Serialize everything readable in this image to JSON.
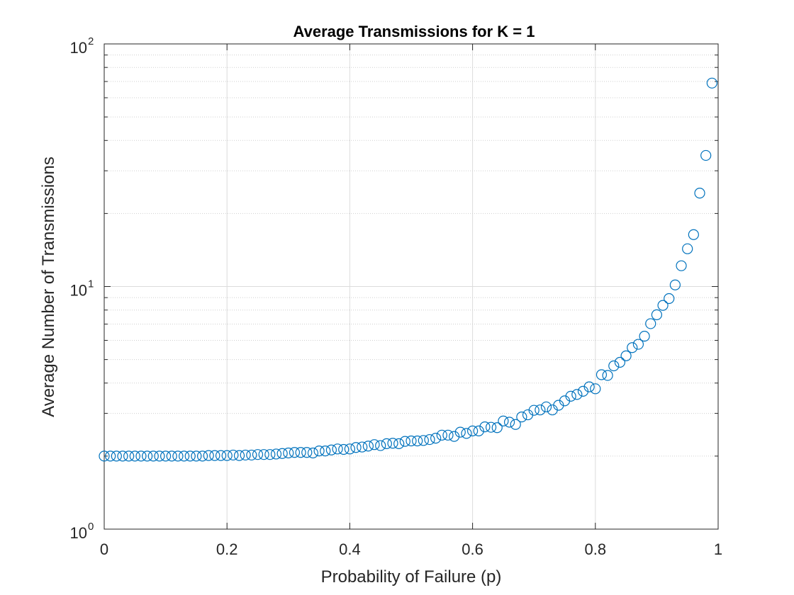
{
  "chart_data": {
    "type": "scatter",
    "title": "Average Transmissions for K = 1",
    "xlabel": "Probability of Failure (p)",
    "ylabel": "Average Number of Transmissions",
    "xlim": [
      0,
      1
    ],
    "ylim": [
      1,
      100
    ],
    "yscale": "log",
    "grid": true,
    "minor_grid": true,
    "marker": "open-circle",
    "x_ticks": [
      "0",
      "0.2",
      "0.4",
      "0.6",
      "0.8",
      "1"
    ],
    "y_ticks": [
      {
        "base": "10",
        "exp": "0",
        "value": 1
      },
      {
        "base": "10",
        "exp": "1",
        "value": 10
      },
      {
        "base": "10",
        "exp": "2",
        "value": 100
      }
    ],
    "colors": {
      "series": "#0072BD",
      "grid": "#DCDCDC",
      "axis": "#262626"
    },
    "series": [
      {
        "x": [
          0,
          0.01,
          0.02,
          0.03,
          0.04,
          0.05,
          0.06,
          0.07,
          0.08,
          0.09,
          0.1,
          0.11,
          0.12,
          0.13,
          0.14,
          0.15,
          0.16,
          0.17,
          0.18,
          0.19,
          0.2,
          0.21,
          0.22,
          0.23,
          0.24,
          0.25,
          0.26,
          0.27,
          0.28,
          0.29,
          0.3,
          0.31,
          0.32,
          0.33,
          0.34,
          0.35,
          0.36,
          0.37,
          0.38,
          0.39,
          0.4,
          0.41,
          0.42,
          0.43,
          0.44,
          0.45,
          0.46,
          0.47,
          0.48,
          0.49,
          0.5,
          0.51,
          0.52,
          0.53,
          0.54,
          0.55,
          0.56,
          0.57,
          0.58,
          0.59,
          0.6,
          0.61,
          0.62,
          0.63,
          0.64,
          0.65,
          0.66,
          0.67,
          0.68,
          0.69,
          0.7,
          0.71,
          0.72,
          0.73,
          0.74,
          0.75,
          0.76,
          0.77,
          0.78,
          0.79,
          0.8,
          0.81,
          0.82,
          0.83,
          0.84,
          0.85,
          0.86,
          0.87,
          0.88,
          0.89,
          0.9,
          0.91,
          0.92,
          0.93,
          0.94,
          0.95,
          0.96,
          0.97,
          0.98,
          0.99
        ],
        "y": [
          2.0,
          2.0,
          2.0,
          2.0,
          2.0,
          2.0,
          2.0,
          2.0,
          2.0,
          2.0,
          2.0,
          2.0,
          2.0,
          2.0,
          2.0,
          2.0,
          2.0,
          2.01,
          2.01,
          2.01,
          2.01,
          2.02,
          2.01,
          2.02,
          2.02,
          2.03,
          2.03,
          2.03,
          2.04,
          2.05,
          2.06,
          2.07,
          2.07,
          2.07,
          2.06,
          2.1,
          2.1,
          2.12,
          2.14,
          2.13,
          2.14,
          2.17,
          2.18,
          2.2,
          2.23,
          2.21,
          2.25,
          2.26,
          2.25,
          2.3,
          2.31,
          2.31,
          2.32,
          2.34,
          2.37,
          2.44,
          2.44,
          2.41,
          2.51,
          2.48,
          2.54,
          2.54,
          2.64,
          2.63,
          2.62,
          2.79,
          2.76,
          2.7,
          2.9,
          2.96,
          3.09,
          3.1,
          3.19,
          3.1,
          3.24,
          3.38,
          3.53,
          3.59,
          3.7,
          3.86,
          3.79,
          4.33,
          4.3,
          4.71,
          4.87,
          5.18,
          5.6,
          5.78,
          6.24,
          7.03,
          7.65,
          8.36,
          8.92,
          10.15,
          12.18,
          14.31,
          16.36,
          24.27,
          34.7,
          68.95
        ]
      }
    ]
  }
}
